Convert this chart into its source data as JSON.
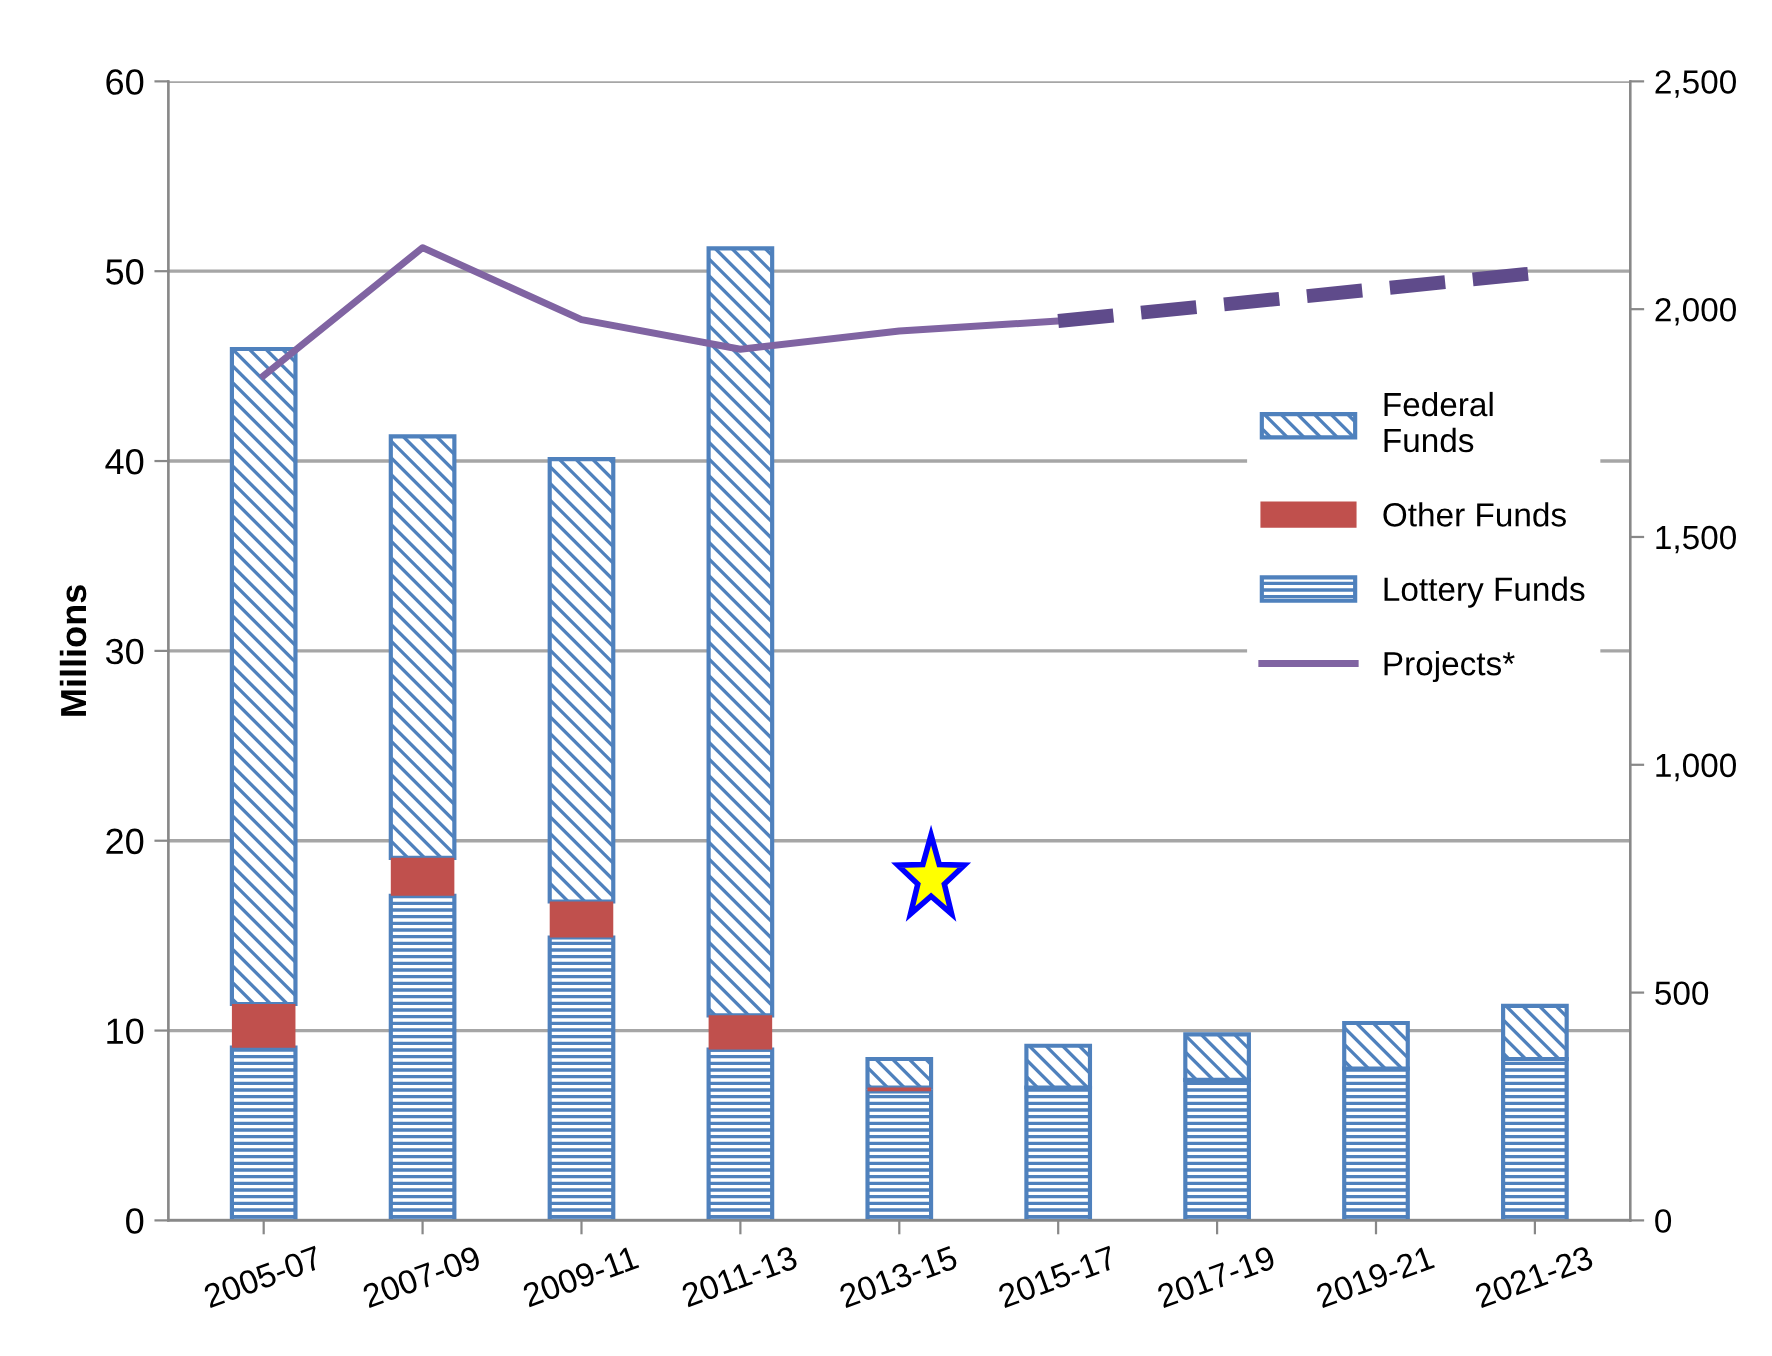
{
  "chart_data": {
    "type": "bar",
    "stacked": true,
    "ylabel": "Millions",
    "categories": [
      "2005-07",
      "2007-09",
      "2009-11",
      "2011-13",
      "2013-15",
      "2015-17",
      "2017-19",
      "2019-21",
      "2021-23"
    ],
    "series": [
      {
        "name": "Lottery Funds",
        "color": "#4f81bd",
        "values": [
          9.1,
          17.1,
          14.9,
          9.0,
          6.8,
          7.0,
          7.4,
          8.0,
          8.5
        ]
      },
      {
        "name": "Other Funds",
        "color": "#c0504d",
        "values": [
          2.3,
          2.0,
          1.9,
          1.8,
          0.2,
          null,
          null,
          null,
          null
        ]
      },
      {
        "name": "Federal\nFunds",
        "color": "#4f81bd",
        "values": [
          34.5,
          22.2,
          23.3,
          40.4,
          1.5,
          2.2,
          2.4,
          2.4,
          2.8
        ]
      },
      {
        "name": "Projects*",
        "type": "line",
        "axis": "y2",
        "color": "#8064a2",
        "line_style": "solid",
        "values": [
          1854,
          2135,
          1977,
          1912,
          1952,
          1974,
          null,
          null,
          null
        ]
      },
      {
        "type": "line",
        "axis": "y2",
        "color": "#5f4b8b",
        "line_style": "dashed",
        "values": [
          null,
          null,
          null,
          null,
          null,
          1974,
          2009,
          2044,
          2079
        ]
      }
    ],
    "ylim": [
      0,
      60
    ],
    "yticks": [
      0,
      10,
      20,
      30,
      40,
      50,
      60
    ],
    "y2lim": [
      0,
      2500
    ],
    "y2ticks": [
      0,
      {
        "value": 500,
        "label": "500"
      },
      {
        "value": 1000,
        "label": "1,000"
      },
      {
        "value": 1500,
        "label": "1,500"
      },
      {
        "value": 2000,
        "label": "2,000"
      },
      {
        "value": 2500,
        "label": "2,500"
      }
    ],
    "grid": "y",
    "legend": "right"
  }
}
